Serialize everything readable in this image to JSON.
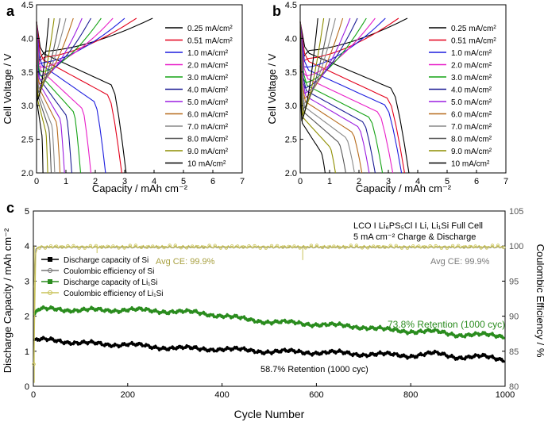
{
  "panels": {
    "a": {
      "label": "a"
    },
    "b": {
      "label": "b"
    },
    "c": {
      "label": "c"
    }
  },
  "colors": {
    "series": [
      "#000000",
      "#e3001b",
      "#1d1dde",
      "#e81ec8",
      "#15a315",
      "#1b1b94",
      "#9c1fe0",
      "#b76b1d",
      "#888888",
      "#565656",
      "#8e8e00"
    ],
    "si": "#000000",
    "li1si": "#2a8c1e",
    "ce_li1si": "#c9c35a",
    "ce_si": "#777777"
  },
  "chart_data": [
    {
      "id": "a",
      "type": "line",
      "xlabel": "Capacity / mAh cm⁻²",
      "ylabel": "Cell Voltage / V",
      "xlim": [
        0,
        7
      ],
      "ylim": [
        2.0,
        4.5
      ],
      "xticks": [
        "0",
        "1",
        "2",
        "3",
        "4",
        "5",
        "6",
        "7"
      ],
      "yticks": [
        "2.0",
        "2.5",
        "3.0",
        "3.5",
        "4.0",
        "4.5"
      ],
      "legend": [
        "0.25 mA/cm²",
        "0.51 mA/cm²",
        "1.0 mA/cm²",
        "2.0 mA/cm²",
        "3.0 mA/cm²",
        "4.0 mA/cm²",
        "5.0 mA/cm²",
        "6.0 mA/cm²",
        "7.0 mA/cm²",
        "8.0 mA/cm²",
        "9.0 mA/cm²",
        "10 mA/cm²"
      ],
      "series": [
        {
          "name": "0.25 mA/cm²",
          "charge_end": 3.95,
          "discharge_end": 3.05,
          "plateau": 3.79,
          "knee": 3.3
        },
        {
          "name": "0.51 mA/cm²",
          "charge_end": 3.4,
          "discharge_end": 2.9,
          "plateau": 3.7,
          "knee": 3.15
        },
        {
          "name": "1.0 mA/cm²",
          "charge_end": 3.0,
          "discharge_end": 2.35,
          "plateau": 3.62,
          "knee": 3.05
        },
        {
          "name": "2.0 mA/cm²",
          "charge_end": 2.6,
          "discharge_end": 1.85,
          "plateau": 3.55,
          "knee": 2.95
        },
        {
          "name": "3.0 mA/cm²",
          "charge_end": 2.2,
          "discharge_end": 1.5,
          "plateau": 3.48,
          "knee": 2.9
        },
        {
          "name": "4.0 mA/cm²",
          "charge_end": 1.85,
          "discharge_end": 1.2,
          "plateau": 3.42,
          "knee": 2.85
        },
        {
          "name": "5.0 mA/cm²",
          "charge_end": 1.55,
          "discharge_end": 0.95,
          "plateau": 3.36,
          "knee": 2.8
        },
        {
          "name": "6.0 mA/cm²",
          "charge_end": 1.25,
          "discharge_end": 0.8,
          "plateau": 3.3,
          "knee": 2.75
        },
        {
          "name": "7.0 mA/cm²",
          "charge_end": 1.0,
          "discharge_end": 0.62,
          "plateau": 3.24,
          "knee": 2.7
        },
        {
          "name": "8.0 mA/cm²",
          "charge_end": 0.8,
          "discharge_end": 0.5,
          "plateau": 3.18,
          "knee": 2.65
        },
        {
          "name": "9.0 mA/cm²",
          "charge_end": 0.6,
          "discharge_end": 0.38,
          "plateau": 3.12,
          "knee": 2.6
        },
        {
          "name": "10 mA/cm²",
          "charge_end": 0.42,
          "discharge_end": 0.22,
          "plateau": 3.06,
          "knee": 2.55
        }
      ]
    },
    {
      "id": "b",
      "type": "line",
      "xlabel": "Capacity / mAh cm⁻²",
      "ylabel": "Cell Voltage / V",
      "xlim": [
        0,
        7
      ],
      "ylim": [
        2.0,
        4.5
      ],
      "xticks": [
        "0",
        "1",
        "2",
        "3",
        "4",
        "5",
        "6",
        "7"
      ],
      "yticks": [
        "2.0",
        "2.5",
        "3.0",
        "3.5",
        "4.0",
        "4.5"
      ],
      "legend": [
        "0.25 mA/cm²",
        "0.51 mA/cm²",
        "1.0 mA/cm²",
        "2.0 mA/cm²",
        "3.0 mA/cm²",
        "4.0 mA/cm²",
        "5.0 mA/cm²",
        "6.0 mA/cm²",
        "7.0 mA/cm²",
        "8.0 mA/cm²",
        "9.0 mA/cm²",
        "10 mA/cm²"
      ],
      "series": [
        {
          "name": "0.25 mA/cm²",
          "charge_end": 3.65,
          "discharge_end": 3.7,
          "plateau": 3.8,
          "knee": 3.25
        },
        {
          "name": "0.51 mA/cm²",
          "charge_end": 3.35,
          "discharge_end": 3.55,
          "plateau": 3.68,
          "knee": 3.1
        },
        {
          "name": "1.0 mA/cm²",
          "charge_end": 2.9,
          "discharge_end": 3.45,
          "plateau": 3.55,
          "knee": 3.0
        },
        {
          "name": "2.0 mA/cm²",
          "charge_end": 2.55,
          "discharge_end": 3.15,
          "plateau": 3.42,
          "knee": 2.9
        },
        {
          "name": "3.0 mA/cm²",
          "charge_end": 2.25,
          "discharge_end": 2.8,
          "plateau": 3.32,
          "knee": 2.82
        },
        {
          "name": "4.0 mA/cm²",
          "charge_end": 1.95,
          "discharge_end": 2.55,
          "plateau": 3.24,
          "knee": 2.75
        },
        {
          "name": "5.0 mA/cm²",
          "charge_end": 1.7,
          "discharge_end": 2.35,
          "plateau": 3.16,
          "knee": 2.68
        },
        {
          "name": "6.0 mA/cm²",
          "charge_end": 1.45,
          "discharge_end": 2.1,
          "plateau": 3.08,
          "knee": 2.6
        },
        {
          "name": "7.0 mA/cm²",
          "charge_end": 1.2,
          "discharge_end": 1.85,
          "plateau": 3.0,
          "knee": 2.52
        },
        {
          "name": "8.0 mA/cm²",
          "charge_end": 1.0,
          "discharge_end": 1.55,
          "plateau": 2.92,
          "knee": 2.45
        },
        {
          "name": "9.0 mA/cm²",
          "charge_end": 0.8,
          "discharge_end": 1.2,
          "plateau": 2.84,
          "knee": 2.38
        },
        {
          "name": "10 mA/cm²",
          "charge_end": 0.6,
          "discharge_end": 0.85,
          "plateau": 2.76,
          "knee": 2.3
        }
      ]
    },
    {
      "id": "c",
      "type": "scatter",
      "title": "LCO I Li₆PS₅Cl I Li, Li₁Si Full Cell",
      "subtitle": "5 mA cm⁻² Charge & Discharge",
      "xlabel": "Cycle Number",
      "ylabel_left": "Discharge Capacity / mAh cm⁻²",
      "ylabel_right": "Coulombic Efficiency / %",
      "xlim": [
        0,
        1000
      ],
      "ylim_left": [
        0,
        5
      ],
      "ylim_right": [
        80,
        105
      ],
      "xticks": [
        "0",
        "200",
        "400",
        "600",
        "800",
        "1000"
      ],
      "yticks_left": [
        "0",
        "1",
        "2",
        "3",
        "4",
        "5"
      ],
      "yticks_right": [
        "80",
        "85",
        "90",
        "95",
        "100",
        "105"
      ],
      "legend": [
        "Discharge capacity of Si",
        "Coulombic efficiency of Si",
        "Discharge capacity of Li₁Si",
        "Coulombic efficiency of Li₁Si"
      ],
      "annotations": {
        "avg_ce_li1si": "Avg CE: 99.9%",
        "avg_ce_si": "Avg CE: 99.9%",
        "retention_li1si": "73.8% Retention (1000 cyc)",
        "retention_si": "58.7% Retention (1000 cyc)"
      },
      "series": [
        {
          "name": "Discharge capacity of Si",
          "x": [
            1,
            10,
            50,
            100,
            150,
            200,
            250,
            300,
            350,
            400,
            450,
            500,
            550,
            600,
            650,
            700,
            750,
            800,
            850,
            900,
            950,
            1000
          ],
          "values": [
            1.3,
            1.32,
            1.3,
            1.25,
            1.18,
            1.22,
            1.1,
            1.12,
            1.05,
            1.08,
            1.02,
            1.0,
            0.98,
            0.97,
            0.95,
            0.92,
            0.9,
            0.88,
            0.93,
            0.84,
            0.84,
            0.77
          ]
        },
        {
          "name": "Discharge capacity of Li₁Si",
          "x": [
            1,
            10,
            50,
            100,
            150,
            200,
            250,
            300,
            350,
            400,
            450,
            500,
            550,
            600,
            650,
            700,
            750,
            800,
            850,
            900,
            950,
            1000
          ],
          "values": [
            2.0,
            2.18,
            2.2,
            2.18,
            2.16,
            2.2,
            2.14,
            2.15,
            2.08,
            2.03,
            1.9,
            1.85,
            1.8,
            1.78,
            1.72,
            1.7,
            1.6,
            1.58,
            1.55,
            1.48,
            1.46,
            1.44
          ]
        },
        {
          "name": "Coulombic efficiency of Si",
          "x": [
            1,
            5,
            10,
            1000
          ],
          "values": [
            94.0,
            99.6,
            99.8,
            99.8
          ]
        },
        {
          "name": "Coulombic efficiency of Li₁Si",
          "x": [
            1,
            5,
            10,
            1000
          ],
          "values": [
            83.0,
            99.0,
            99.9,
            99.9
          ]
        }
      ]
    }
  ]
}
